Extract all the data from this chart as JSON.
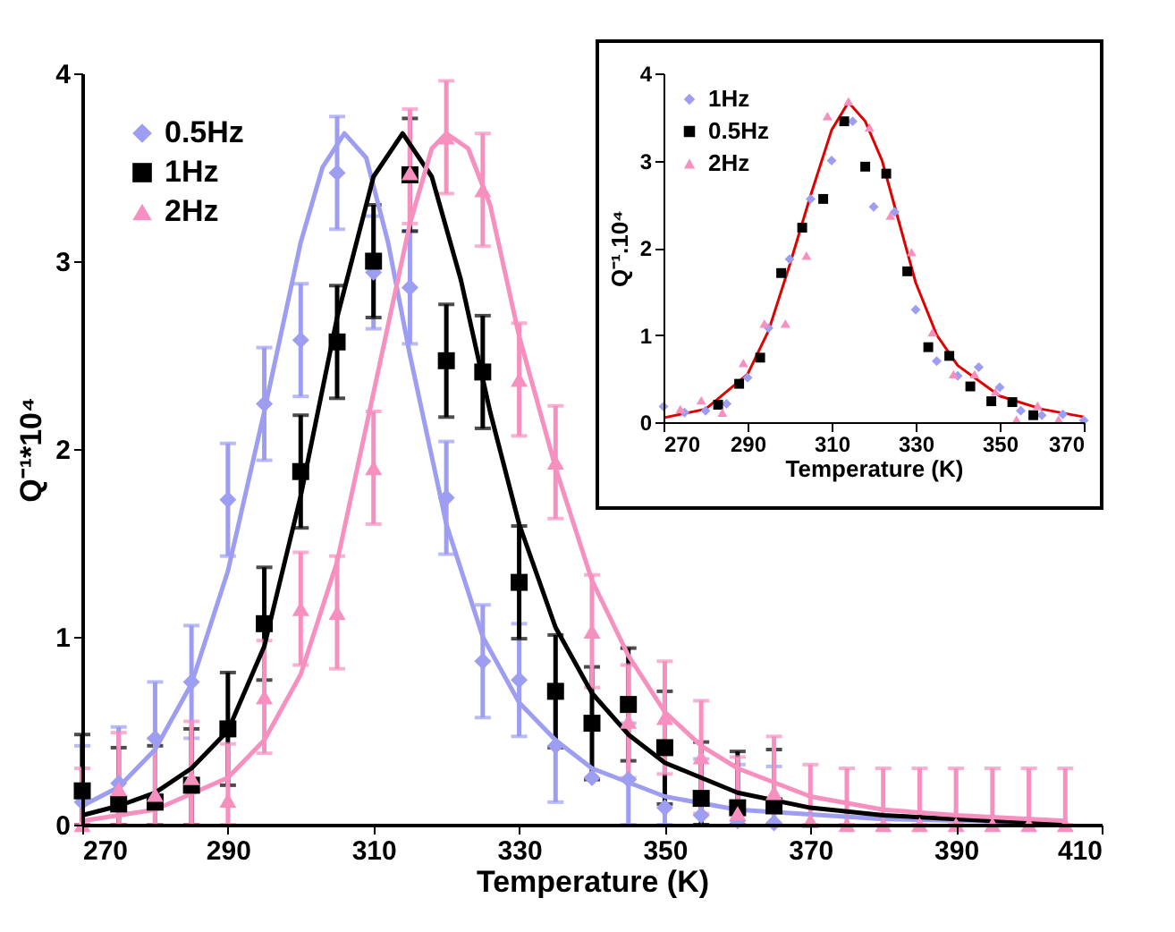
{
  "chart_data": [
    {
      "type": "scatter",
      "xlabel": "Temperature (K)",
      "ylabel": "Q⁻¹*10⁴",
      "xlim": [
        270,
        410
      ],
      "xticks": [
        270,
        290,
        310,
        330,
        350,
        370,
        390,
        410
      ],
      "ylim": [
        0,
        4
      ],
      "yticks": [
        0,
        1,
        2,
        3,
        4
      ],
      "legend": "top left",
      "x": [
        270,
        275,
        280,
        285,
        290,
        295,
        300,
        305,
        310,
        315,
        320,
        325,
        330,
        335,
        340,
        345,
        350,
        355,
        360,
        365,
        370,
        375,
        380,
        385,
        390,
        395,
        400,
        405
      ],
      "series": [
        {
          "name": "0.5Hz",
          "type": "scatter",
          "marker": "diamond",
          "color": "#9d9df2",
          "values": [
            0.12,
            0.22,
            0.46,
            0.76,
            1.73,
            2.24,
            2.58,
            3.47,
            2.94,
            2.86,
            1.74,
            0.87,
            0.77,
            0.42,
            0.25,
            0.24,
            0.09,
            0.05,
            0.02,
            0.01,
            null,
            null,
            null,
            null,
            null,
            null,
            null,
            null
          ],
          "errors": [
            [
              0,
              0.42
            ],
            [
              0,
              0.52
            ],
            0.3,
            0.3,
            0.3,
            0.3,
            0.3,
            0.3,
            0.3,
            0.3,
            0.3,
            0.3,
            0.3,
            0.3,
            null,
            [
              0,
              0.54
            ],
            [
              0,
              0.39
            ],
            [
              0,
              0.35
            ],
            [
              0,
              0.32
            ],
            [
              0,
              0.31
            ],
            null,
            null,
            null,
            null,
            null,
            null,
            null,
            null
          ]
        },
        {
          "name": "1Hz",
          "type": "scatter",
          "marker": "square",
          "color": "#000000",
          "values": [
            0.18,
            0.11,
            0.12,
            0.21,
            0.51,
            1.07,
            1.88,
            2.57,
            3.0,
            3.46,
            2.47,
            2.41,
            1.29,
            0.71,
            0.54,
            0.64,
            0.41,
            0.14,
            0.09,
            0.1,
            null,
            null,
            null,
            null,
            null,
            null,
            null,
            null
          ],
          "errors": [
            [
              0,
              0.48
            ],
            [
              0,
              0.41
            ],
            [
              0,
              0.42
            ],
            [
              0,
              0.51
            ],
            0.3,
            0.3,
            0.3,
            0.3,
            0.3,
            0.3,
            0.3,
            0.3,
            0.3,
            0.3,
            0.3,
            0.3,
            0.3,
            [
              0,
              0.44
            ],
            [
              0,
              0.39
            ],
            [
              0,
              0.4
            ],
            null,
            null,
            null,
            null,
            null,
            null,
            null,
            null
          ]
        },
        {
          "name": "2Hz",
          "type": "scatter",
          "marker": "triangle",
          "color": "#f78fbf",
          "values": [
            0,
            0.19,
            0.16,
            0.25,
            0.13,
            0.68,
            1.15,
            1.13,
            1.9,
            3.47,
            3.66,
            3.38,
            2.37,
            1.93,
            1.03,
            0.55,
            0.57,
            0.36,
            0.06,
            0.17,
            0.02,
            0,
            0,
            0,
            0,
            0,
            0,
            0
          ],
          "errors": [
            [
              0,
              0.3
            ],
            [
              0,
              0.49
            ],
            [
              0,
              0.46
            ],
            [
              0,
              0.55
            ],
            [
              0,
              0.43
            ],
            0.3,
            0.3,
            0.3,
            0.3,
            [
              3.2,
              3.81
            ],
            0.3,
            0.3,
            0.3,
            0.3,
            0.3,
            0.3,
            0.3,
            0.3,
            [
              0,
              0.36
            ],
            [
              0,
              0.47
            ],
            [
              0,
              0.32
            ],
            [
              0,
              0.3
            ],
            [
              0,
              0.3
            ],
            [
              0,
              0.3
            ],
            [
              0,
              0.3
            ],
            [
              0,
              0.3
            ],
            [
              0,
              0.3
            ],
            [
              0,
              0.3
            ]
          ]
        },
        {
          "type": "line",
          "color": "#9d9df2",
          "x": [
            270,
            275,
            280,
            285,
            290,
            295,
            300,
            303,
            306,
            309,
            312,
            315,
            320,
            325,
            330,
            335,
            340,
            350,
            360,
            380,
            405
          ],
          "values": [
            0.1,
            0.2,
            0.4,
            0.75,
            1.35,
            2.2,
            3.1,
            3.5,
            3.68,
            3.55,
            3.1,
            2.5,
            1.6,
            1.0,
            0.65,
            0.45,
            0.3,
            0.15,
            0.08,
            0.03,
            0.01
          ]
        },
        {
          "type": "line",
          "color": "#000000",
          "x": [
            270,
            275,
            280,
            285,
            290,
            295,
            300,
            305,
            310,
            314,
            318,
            322,
            326,
            330,
            335,
            340,
            345,
            350,
            360,
            370,
            380,
            395,
            405
          ],
          "values": [
            0.05,
            0.1,
            0.17,
            0.3,
            0.5,
            0.95,
            1.75,
            2.7,
            3.45,
            3.68,
            3.45,
            2.9,
            2.2,
            1.6,
            1.05,
            0.7,
            0.48,
            0.33,
            0.17,
            0.09,
            0.05,
            0.02,
            0.01
          ]
        },
        {
          "type": "line",
          "color": "#f78fbf",
          "x": [
            270,
            280,
            290,
            295,
            300,
            305,
            310,
            315,
            318,
            320,
            323,
            326,
            330,
            335,
            340,
            345,
            350,
            355,
            360,
            370,
            380,
            390,
            405
          ],
          "values": [
            0.02,
            0.08,
            0.25,
            0.45,
            0.8,
            1.4,
            2.3,
            3.2,
            3.6,
            3.68,
            3.6,
            3.3,
            2.6,
            1.9,
            1.3,
            0.9,
            0.6,
            0.42,
            0.3,
            0.15,
            0.08,
            0.05,
            0.02
          ]
        }
      ]
    },
    {
      "type": "scatter",
      "xlabel": "Temperature (K)",
      "ylabel": "Q⁻¹.10⁴",
      "xlim": [
        270,
        370
      ],
      "xticks": [
        270,
        290,
        310,
        330,
        350,
        370
      ],
      "ylim": [
        0,
        4
      ],
      "yticks": [
        0,
        1,
        2,
        3,
        4
      ],
      "legend": "top left",
      "series": [
        {
          "name": "1Hz",
          "type": "scatter",
          "marker": "diamond",
          "color": "#9d9df2",
          "x": [
            270,
            275,
            280,
            285,
            290,
            295,
            300,
            305,
            310,
            315,
            320,
            325,
            330,
            335,
            340,
            345,
            350,
            355,
            360,
            365,
            370
          ],
          "values": [
            0.18,
            0.11,
            0.13,
            0.21,
            0.51,
            1.08,
            1.87,
            2.56,
            3.0,
            3.45,
            2.47,
            2.41,
            1.29,
            0.7,
            0.53,
            0.63,
            0.4,
            0.13,
            0.08,
            0.09,
            0.02
          ]
        },
        {
          "name": "0.5Hz",
          "type": "scatter",
          "marker": "square",
          "color": "#000000",
          "x": [
            283,
            288,
            293,
            298,
            303,
            308,
            313,
            318,
            323,
            328,
            333,
            338,
            343,
            348,
            353,
            358
          ],
          "values": [
            0.2,
            0.44,
            0.74,
            1.71,
            2.23,
            2.56,
            3.45,
            2.93,
            2.85,
            1.73,
            0.86,
            0.76,
            0.41,
            0.24,
            0.23,
            0.08
          ]
        },
        {
          "name": "2Hz",
          "type": "scatter",
          "marker": "triangle",
          "color": "#f78fbf",
          "x": [
            274,
            279,
            284,
            289,
            294,
            299,
            304,
            309,
            314,
            319,
            324,
            329,
            334,
            339,
            344,
            349,
            354,
            359,
            364
          ],
          "values": [
            0.15,
            0.25,
            0.11,
            0.68,
            1.13,
            1.13,
            1.91,
            3.51,
            3.68,
            3.38,
            2.37,
            1.95,
            1.03,
            0.55,
            0.55,
            0.35,
            0.03,
            0.19,
            0.03
          ]
        },
        {
          "type": "line",
          "color": "#e00000",
          "x": [
            270,
            280,
            290,
            295,
            300,
            305,
            310,
            314,
            318,
            322,
            326,
            330,
            335,
            340,
            350,
            360,
            370
          ],
          "values": [
            0.05,
            0.15,
            0.55,
            1.05,
            1.8,
            2.6,
            3.35,
            3.67,
            3.45,
            3.0,
            2.3,
            1.6,
            1.0,
            0.65,
            0.3,
            0.15,
            0.06
          ]
        }
      ]
    }
  ]
}
